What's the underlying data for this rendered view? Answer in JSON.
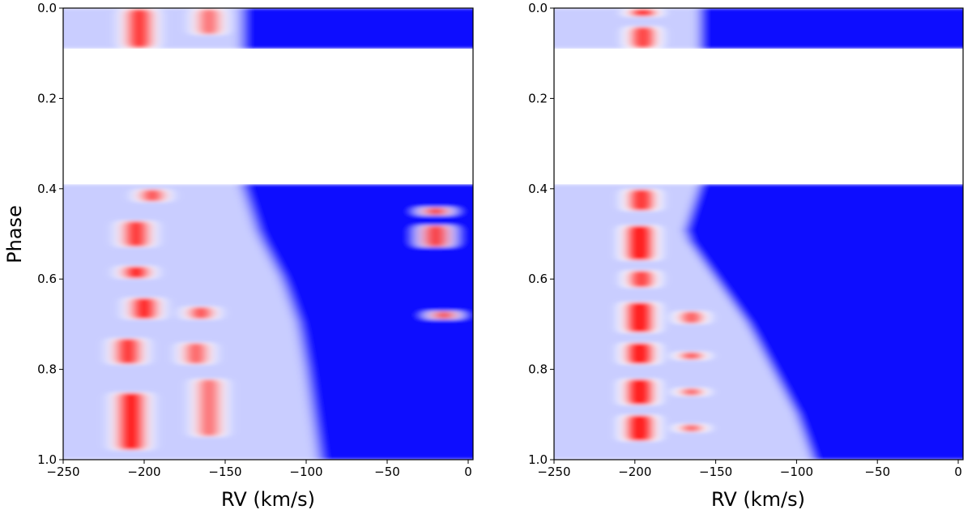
{
  "chart_data": [
    {
      "type": "heatmap",
      "xlabel": "RV (km/s)",
      "ylabel": "Phase",
      "xlim": [
        -250,
        3
      ],
      "ylim": [
        1.0,
        0.0
      ],
      "xticks": [
        -250,
        -200,
        -150,
        -100,
        -50,
        0
      ],
      "xtick_labels": [
        "−250",
        "−200",
        "−150",
        "−100",
        "−50",
        "0"
      ],
      "yticks": [
        0.0,
        0.2,
        0.4,
        0.6,
        0.8,
        1.0
      ],
      "ytick_labels": [
        "0.0",
        "0.2",
        "0.4",
        "0.6",
        "0.8",
        "1.0"
      ],
      "colormap": "bwr",
      "colors": {
        "low": "#0000ff",
        "mid": "#ffffff",
        "high": "#ff0000"
      },
      "data_gap_phase": [
        0.09,
        0.39
      ],
      "phase_bands": [
        [
          0.0,
          0.09
        ],
        [
          0.39,
          1.0
        ]
      ],
      "absorption_edge": [
        [
          0.39,
          -140
        ],
        [
          0.5,
          -130
        ],
        [
          0.6,
          -115
        ],
        [
          0.7,
          -105
        ],
        [
          0.8,
          -100
        ],
        [
          0.9,
          -96
        ],
        [
          1.0,
          -92
        ]
      ],
      "red_features": [
        {
          "rv": -203,
          "phase": [
            0.0,
            0.09
          ],
          "strength": 0.8
        },
        {
          "rv": -160,
          "phase": [
            0.0,
            0.06
          ],
          "strength": 0.4
        },
        {
          "rv": -195,
          "phase": [
            0.4,
            0.43
          ],
          "strength": 0.6
        },
        {
          "rv": -205,
          "phase": [
            0.47,
            0.53
          ],
          "strength": 0.8
        },
        {
          "rv": -205,
          "phase": [
            0.57,
            0.6
          ],
          "strength": 0.9
        },
        {
          "rv": -200,
          "phase": [
            0.64,
            0.69
          ],
          "strength": 0.9
        },
        {
          "rv": -165,
          "phase": [
            0.66,
            0.69
          ],
          "strength": 0.6
        },
        {
          "rv": -210,
          "phase": [
            0.73,
            0.79
          ],
          "strength": 0.8
        },
        {
          "rv": -168,
          "phase": [
            0.74,
            0.79
          ],
          "strength": 0.5
        },
        {
          "rv": -208,
          "phase": [
            0.85,
            0.98
          ],
          "strength": 1.0
        },
        {
          "rv": -160,
          "phase": [
            0.82,
            0.95
          ],
          "strength": 0.4
        },
        {
          "rv": -20,
          "phase": [
            0.48,
            0.53
          ],
          "strength": 0.7
        },
        {
          "rv": -20,
          "phase": [
            0.44,
            0.46
          ],
          "strength": 0.6
        },
        {
          "rv": -15,
          "phase": [
            0.67,
            0.69
          ],
          "strength": 0.5
        }
      ]
    },
    {
      "type": "heatmap",
      "xlabel": "RV (km/s)",
      "ylabel": "",
      "xlim": [
        -250,
        3
      ],
      "ylim": [
        1.0,
        0.0
      ],
      "xticks": [
        -250,
        -200,
        -150,
        -100,
        -50,
        0
      ],
      "xtick_labels": [
        "−250",
        "−200",
        "−150",
        "−100",
        "−50",
        "0"
      ],
      "yticks": [
        0.0,
        0.2,
        0.4,
        0.6,
        0.8,
        1.0
      ],
      "ytick_labels": [
        "0.0",
        "0.2",
        "0.4",
        "0.6",
        "0.8",
        "1.0"
      ],
      "colormap": "bwr",
      "colors": {
        "low": "#0000ff",
        "mid": "#ffffff",
        "high": "#ff0000"
      },
      "data_gap_phase": [
        0.09,
        0.39
      ],
      "phase_bands": [
        [
          0.0,
          0.09
        ],
        [
          0.39,
          1.0
        ]
      ],
      "absorption_edge": [
        [
          0.39,
          -160
        ],
        [
          0.5,
          -170
        ],
        [
          0.6,
          -150
        ],
        [
          0.7,
          -130
        ],
        [
          0.8,
          -115
        ],
        [
          0.9,
          -100
        ],
        [
          1.0,
          -90
        ]
      ],
      "red_features": [
        {
          "rv": -195,
          "phase": [
            0.0,
            0.02
          ],
          "strength": 0.8
        },
        {
          "rv": -195,
          "phase": [
            0.04,
            0.09
          ],
          "strength": 0.7
        },
        {
          "rv": -196,
          "phase": [
            0.4,
            0.45
          ],
          "strength": 0.8
        },
        {
          "rv": -197,
          "phase": [
            0.48,
            0.56
          ],
          "strength": 1.0
        },
        {
          "rv": -196,
          "phase": [
            0.58,
            0.62
          ],
          "strength": 0.7
        },
        {
          "rv": -197,
          "phase": [
            0.65,
            0.72
          ],
          "strength": 1.0
        },
        {
          "rv": -197,
          "phase": [
            0.74,
            0.79
          ],
          "strength": 1.0
        },
        {
          "rv": -197,
          "phase": [
            0.82,
            0.88
          ],
          "strength": 1.0
        },
        {
          "rv": -197,
          "phase": [
            0.9,
            0.96
          ],
          "strength": 1.0
        },
        {
          "rv": -165,
          "phase": [
            0.67,
            0.7
          ],
          "strength": 0.5
        },
        {
          "rv": -165,
          "phase": [
            0.76,
            0.78
          ],
          "strength": 0.5
        },
        {
          "rv": -165,
          "phase": [
            0.84,
            0.86
          ],
          "strength": 0.4
        },
        {
          "rv": -165,
          "phase": [
            0.92,
            0.94
          ],
          "strength": 0.4
        }
      ]
    }
  ]
}
